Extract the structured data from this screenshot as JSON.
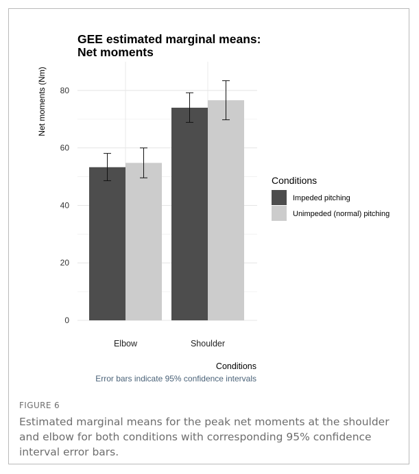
{
  "chart_data": {
    "type": "bar",
    "title": "GEE estimated marginal means:\nNet moments",
    "xlabel": "Conditions",
    "ylabel": "Net moments (Nm)",
    "caption": "Error bars indicate 95% confidence intervals",
    "categories": [
      "Elbow",
      "Shoulder"
    ],
    "ylim": [
      0,
      90
    ],
    "yticks": [
      0,
      20,
      40,
      60,
      80
    ],
    "grid": true,
    "legend": {
      "title": "Conditions",
      "position": "right"
    },
    "series": [
      {
        "name": "Impeded pitching",
        "color": "#4d4d4d",
        "values": [
          53.3,
          74.0
        ],
        "ci_low": [
          48.6,
          68.9
        ],
        "ci_high": [
          58.1,
          79.2
        ]
      },
      {
        "name": "Unimpeded (normal) pitching",
        "color": "#cccccc",
        "values": [
          54.8,
          76.6
        ],
        "ci_low": [
          49.6,
          69.8
        ],
        "ci_high": [
          60.0,
          83.4
        ]
      }
    ]
  },
  "figure": {
    "label": "FIGURE 6",
    "caption": "Estimated marginal means for the peak net moments at the shoulder and elbow for both conditions with corresponding 95% confidence interval error bars."
  }
}
